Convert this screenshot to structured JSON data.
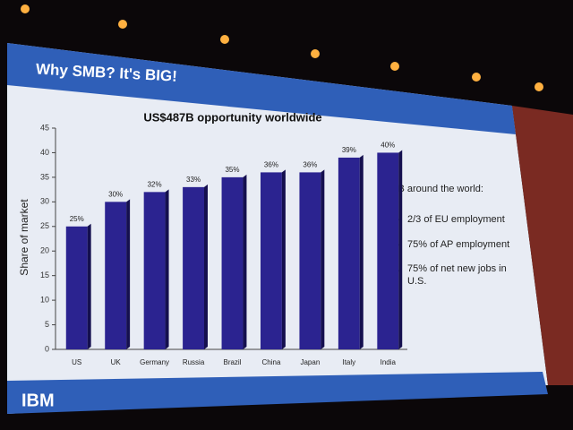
{
  "slide": {
    "title": "Why SMB? It's BIG!",
    "logo": "IBM",
    "bullets": [
      "SMB around the world:",
      "2/3 of EU employment",
      "75% of AP employment",
      "75% of net new jobs in U.S."
    ]
  },
  "chart_data": {
    "type": "bar",
    "title": "US$487B opportunity worldwide",
    "y_label": "Share of market",
    "categories": [
      "US",
      "UK",
      "Germany",
      "Russia",
      "Brazil",
      "China",
      "Japan",
      "Italy",
      "India"
    ],
    "values": [
      25,
      30,
      32,
      33,
      35,
      36,
      36,
      39,
      40
    ],
    "value_labels": [
      "25%",
      "30%",
      "32%",
      "33%",
      "35%",
      "36%",
      "36%",
      "39%",
      "40%"
    ],
    "color": "#2b2390",
    "ylim": [
      0,
      45
    ],
    "yticks": [
      0,
      5,
      10,
      15,
      20,
      25,
      30,
      35,
      40,
      45
    ]
  }
}
